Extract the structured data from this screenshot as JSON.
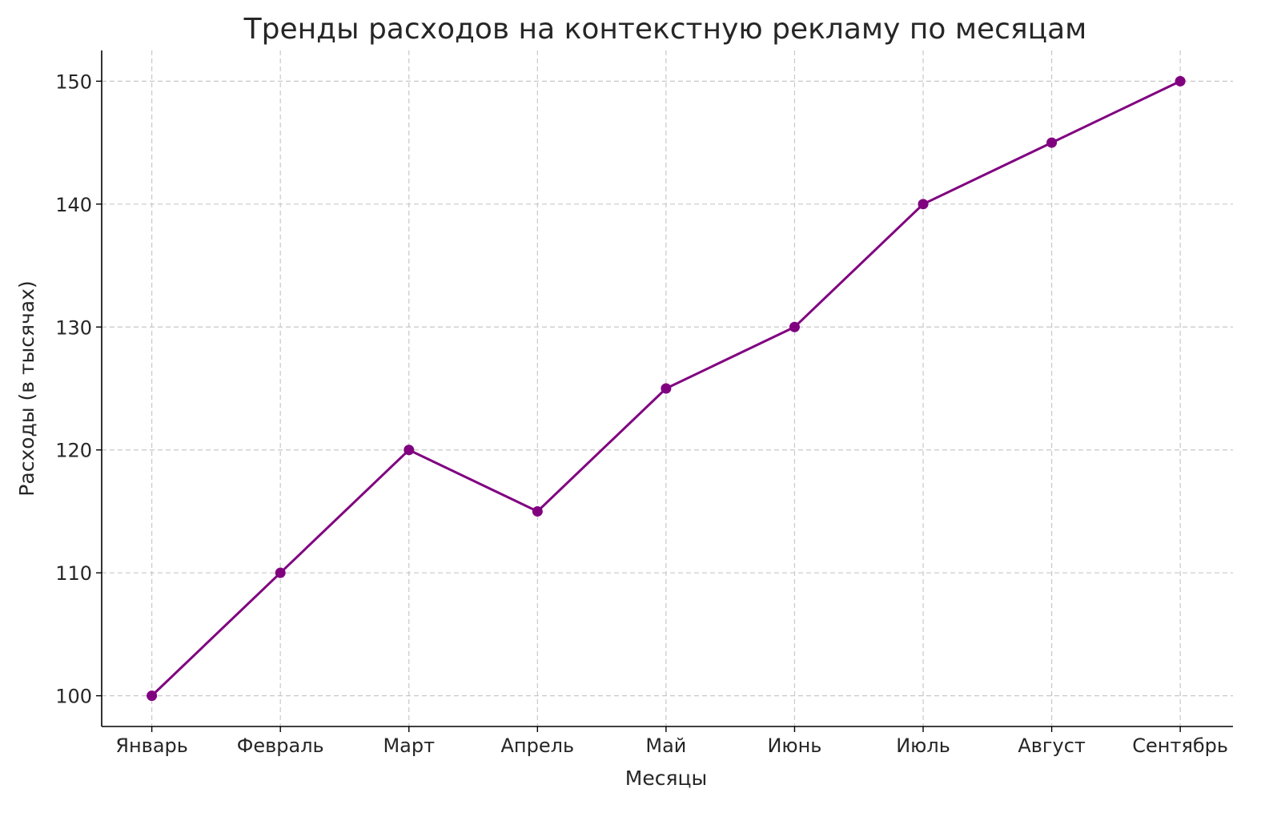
{
  "chart_data": {
    "type": "line",
    "title": "Тренды расходов на контекстную рекламу по месяцам",
    "xlabel": "Месяцы",
    "ylabel": "Расходы (в тысячах)",
    "categories": [
      "Январь",
      "Февраль",
      "Март",
      "Апрель",
      "Май",
      "Июнь",
      "Июль",
      "Август",
      "Сентябрь"
    ],
    "values": [
      100,
      110,
      120,
      115,
      125,
      130,
      140,
      145,
      150
    ],
    "ylim": [
      97.5,
      152.5
    ],
    "yticks": [
      100,
      110,
      120,
      130,
      140,
      150
    ],
    "grid": true,
    "grid_style": "dashed",
    "marker": "circle",
    "color": "#800080"
  }
}
